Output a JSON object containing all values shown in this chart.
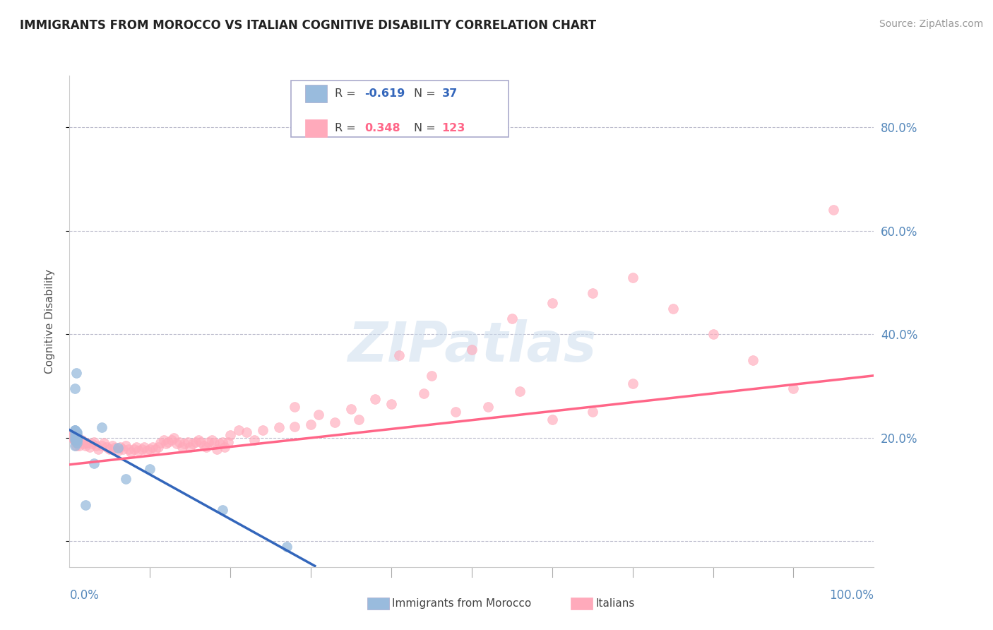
{
  "title": "IMMIGRANTS FROM MOROCCO VS ITALIAN COGNITIVE DISABILITY CORRELATION CHART",
  "source": "Source: ZipAtlas.com",
  "ylabel": "Cognitive Disability",
  "xlim": [
    0.0,
    1.0
  ],
  "ylim": [
    -0.05,
    0.9
  ],
  "yticks": [
    0.0,
    0.2,
    0.4,
    0.6,
    0.8
  ],
  "ytick_labels": [
    "",
    "20.0%",
    "40.0%",
    "60.0%",
    "80.0%"
  ],
  "blue_color": "#99BBDD",
  "pink_color": "#FFAABB",
  "blue_line_color": "#3366BB",
  "pink_line_color": "#FF6688",
  "background_color": "#FFFFFF",
  "grid_color": "#BBBBCC",
  "axis_label_color": "#5588BB",
  "title_color": "#222222",
  "watermark": "ZIPatlas",
  "blue_line_x": [
    0.0,
    0.305
  ],
  "blue_line_y": [
    0.215,
    -0.048
  ],
  "pink_line_x": [
    0.0,
    1.0
  ],
  "pink_line_y": [
    0.148,
    0.32
  ],
  "blue_scatter_x": [
    0.007,
    0.008,
    0.009,
    0.007,
    0.008,
    0.009,
    0.008,
    0.009,
    0.007,
    0.008,
    0.009,
    0.007,
    0.008,
    0.009,
    0.008,
    0.009,
    0.007,
    0.008,
    0.009,
    0.007,
    0.008,
    0.009,
    0.007,
    0.008,
    0.007,
    0.008,
    0.009,
    0.007,
    0.008,
    0.04,
    0.06,
    0.1,
    0.07,
    0.03,
    0.02,
    0.19,
    0.27
  ],
  "blue_scatter_y": [
    0.215,
    0.205,
    0.195,
    0.2,
    0.21,
    0.198,
    0.205,
    0.195,
    0.212,
    0.2,
    0.19,
    0.185,
    0.195,
    0.205,
    0.195,
    0.21,
    0.215,
    0.2,
    0.195,
    0.205,
    0.21,
    0.2,
    0.195,
    0.205,
    0.215,
    0.21,
    0.198,
    0.295,
    0.325,
    0.22,
    0.18,
    0.14,
    0.12,
    0.15,
    0.07,
    0.06,
    -0.01
  ],
  "pink_scatter_x": [
    0.006,
    0.007,
    0.008,
    0.009,
    0.006,
    0.007,
    0.008,
    0.009,
    0.006,
    0.007,
    0.008,
    0.009,
    0.006,
    0.007,
    0.008,
    0.009,
    0.006,
    0.007,
    0.008,
    0.009,
    0.006,
    0.007,
    0.008,
    0.009,
    0.006,
    0.007,
    0.008,
    0.009,
    0.006,
    0.007,
    0.01,
    0.012,
    0.015,
    0.018,
    0.02,
    0.022,
    0.025,
    0.028,
    0.03,
    0.033,
    0.036,
    0.04,
    0.043,
    0.046,
    0.05,
    0.053,
    0.056,
    0.06,
    0.063,
    0.066,
    0.07,
    0.073,
    0.076,
    0.08,
    0.083,
    0.086,
    0.09,
    0.093,
    0.096,
    0.1,
    0.103,
    0.107,
    0.11,
    0.113,
    0.117,
    0.12,
    0.123,
    0.127,
    0.13,
    0.133,
    0.137,
    0.14,
    0.143,
    0.147,
    0.15,
    0.153,
    0.157,
    0.16,
    0.163,
    0.167,
    0.17,
    0.173,
    0.177,
    0.18,
    0.183,
    0.187,
    0.19,
    0.193,
    0.197,
    0.2,
    0.21,
    0.22,
    0.23,
    0.24,
    0.26,
    0.28,
    0.3,
    0.33,
    0.36,
    0.4,
    0.45,
    0.5,
    0.55,
    0.6,
    0.65,
    0.7,
    0.75,
    0.8,
    0.85,
    0.9,
    0.28,
    0.31,
    0.35,
    0.38,
    0.41,
    0.44,
    0.48,
    0.52,
    0.56,
    0.6,
    0.65,
    0.7,
    0.95
  ],
  "pink_scatter_y": [
    0.195,
    0.2,
    0.19,
    0.205,
    0.21,
    0.198,
    0.202,
    0.195,
    0.208,
    0.2,
    0.195,
    0.202,
    0.198,
    0.205,
    0.195,
    0.2,
    0.208,
    0.195,
    0.202,
    0.198,
    0.195,
    0.205,
    0.198,
    0.19,
    0.2,
    0.195,
    0.185,
    0.198,
    0.205,
    0.2,
    0.192,
    0.185,
    0.195,
    0.188,
    0.185,
    0.19,
    0.182,
    0.188,
    0.192,
    0.185,
    0.178,
    0.185,
    0.19,
    0.182,
    0.178,
    0.185,
    0.18,
    0.175,
    0.182,
    0.178,
    0.185,
    0.178,
    0.172,
    0.178,
    0.182,
    0.175,
    0.178,
    0.182,
    0.175,
    0.178,
    0.182,
    0.178,
    0.182,
    0.19,
    0.195,
    0.188,
    0.192,
    0.195,
    0.2,
    0.188,
    0.192,
    0.182,
    0.188,
    0.192,
    0.182,
    0.188,
    0.192,
    0.195,
    0.192,
    0.185,
    0.182,
    0.192,
    0.195,
    0.19,
    0.178,
    0.188,
    0.192,
    0.182,
    0.192,
    0.205,
    0.215,
    0.21,
    0.195,
    0.215,
    0.22,
    0.222,
    0.225,
    0.23,
    0.235,
    0.265,
    0.32,
    0.37,
    0.43,
    0.46,
    0.48,
    0.51,
    0.45,
    0.4,
    0.35,
    0.295,
    0.26,
    0.245,
    0.255,
    0.275,
    0.36,
    0.285,
    0.25,
    0.26,
    0.29,
    0.235,
    0.25,
    0.305,
    0.64
  ]
}
